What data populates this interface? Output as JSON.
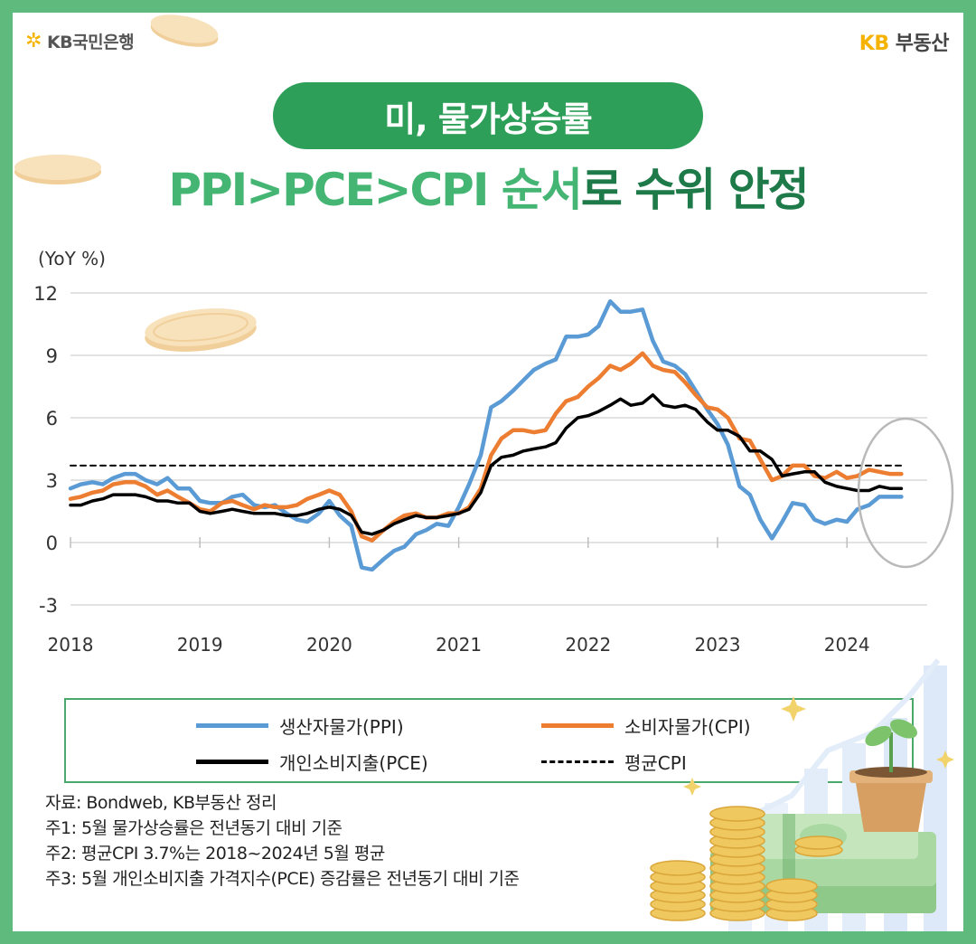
{
  "brand": {
    "left_logo": "KB국민은행",
    "right_logo_kb": "KB",
    "right_logo_text": "부동산"
  },
  "title": {
    "pill": "미, 물가상승률",
    "headline_a": "PPI>PCE>CPI 순서",
    "headline_b": "로 수위 안정"
  },
  "colors": {
    "ppi": "#5b9bd5",
    "cpi": "#ed7d31",
    "pce": "#000000",
    "avg": "#000000",
    "frame": "#5fba7d",
    "accent_dark": "#1f7a4a",
    "accent_light": "#45b573"
  },
  "chart_data": {
    "type": "line",
    "unit_label": "(YoY %)",
    "ylim": [
      -3,
      12
    ],
    "yticks": [
      12,
      9,
      6,
      3,
      0,
      -3
    ],
    "xlim": [
      2018.0,
      2024.42
    ],
    "xticks": [
      "2018",
      "2019",
      "2020",
      "2021",
      "2022",
      "2023",
      "2024"
    ],
    "grid": "horizontal",
    "series": [
      {
        "name": "생산자물가(PPI)",
        "key": "ppi",
        "x": [
          2018.0,
          2018.08,
          2018.17,
          2018.25,
          2018.33,
          2018.42,
          2018.5,
          2018.58,
          2018.67,
          2018.75,
          2018.83,
          2018.92,
          2019.0,
          2019.08,
          2019.17,
          2019.25,
          2019.33,
          2019.42,
          2019.5,
          2019.58,
          2019.67,
          2019.75,
          2019.83,
          2019.92,
          2020.0,
          2020.08,
          2020.17,
          2020.25,
          2020.33,
          2020.42,
          2020.5,
          2020.58,
          2020.67,
          2020.75,
          2020.83,
          2020.92,
          2021.0,
          2021.08,
          2021.17,
          2021.25,
          2021.33,
          2021.42,
          2021.5,
          2021.58,
          2021.67,
          2021.75,
          2021.83,
          2021.92,
          2022.0,
          2022.08,
          2022.17,
          2022.25,
          2022.33,
          2022.42,
          2022.5,
          2022.58,
          2022.67,
          2022.75,
          2022.83,
          2022.92,
          2023.0,
          2023.08,
          2023.17,
          2023.25,
          2023.33,
          2023.42,
          2023.5,
          2023.58,
          2023.67,
          2023.75,
          2023.83,
          2023.92,
          2024.0,
          2024.08,
          2024.17,
          2024.25,
          2024.33,
          2024.42
        ],
        "values": [
          2.6,
          2.8,
          2.9,
          2.8,
          3.1,
          3.3,
          3.3,
          3.0,
          2.8,
          3.1,
          2.6,
          2.6,
          2.0,
          1.9,
          1.9,
          2.2,
          2.3,
          1.8,
          1.7,
          1.8,
          1.4,
          1.1,
          1.0,
          1.4,
          2.0,
          1.3,
          0.8,
          -1.2,
          -1.3,
          -0.8,
          -0.4,
          -0.2,
          0.4,
          0.6,
          0.9,
          0.8,
          1.7,
          2.8,
          4.2,
          6.5,
          6.8,
          7.3,
          7.8,
          8.3,
          8.6,
          8.8,
          9.9,
          9.9,
          10.0,
          10.4,
          11.6,
          11.1,
          11.1,
          11.2,
          9.7,
          8.7,
          8.5,
          8.1,
          7.3,
          6.4,
          5.7,
          4.7,
          2.7,
          2.3,
          1.1,
          0.2,
          1.0,
          1.9,
          1.8,
          1.1,
          0.9,
          1.1,
          1.0,
          1.6,
          1.8,
          2.2,
          2.2,
          2.2
        ]
      },
      {
        "name": "소비자물가(CPI)",
        "key": "cpi",
        "x": [
          2018.0,
          2018.08,
          2018.17,
          2018.25,
          2018.33,
          2018.42,
          2018.5,
          2018.58,
          2018.67,
          2018.75,
          2018.83,
          2018.92,
          2019.0,
          2019.08,
          2019.17,
          2019.25,
          2019.33,
          2019.42,
          2019.5,
          2019.58,
          2019.67,
          2019.75,
          2019.83,
          2019.92,
          2020.0,
          2020.08,
          2020.17,
          2020.25,
          2020.33,
          2020.42,
          2020.5,
          2020.58,
          2020.67,
          2020.75,
          2020.83,
          2020.92,
          2021.0,
          2021.08,
          2021.17,
          2021.25,
          2021.33,
          2021.42,
          2021.5,
          2021.58,
          2021.67,
          2021.75,
          2021.83,
          2021.92,
          2022.0,
          2022.08,
          2022.17,
          2022.25,
          2022.33,
          2022.42,
          2022.5,
          2022.58,
          2022.67,
          2022.75,
          2022.83,
          2022.92,
          2023.0,
          2023.08,
          2023.17,
          2023.25,
          2023.33,
          2023.42,
          2023.5,
          2023.58,
          2023.67,
          2023.75,
          2023.83,
          2023.92,
          2024.0,
          2024.08,
          2024.17,
          2024.25,
          2024.33,
          2024.42
        ],
        "values": [
          2.1,
          2.2,
          2.4,
          2.5,
          2.8,
          2.9,
          2.9,
          2.7,
          2.3,
          2.5,
          2.2,
          1.9,
          1.6,
          1.5,
          1.9,
          2.0,
          1.8,
          1.6,
          1.8,
          1.7,
          1.7,
          1.8,
          2.1,
          2.3,
          2.5,
          2.3,
          1.5,
          0.3,
          0.1,
          0.6,
          1.0,
          1.3,
          1.4,
          1.2,
          1.2,
          1.4,
          1.4,
          1.7,
          2.6,
          4.2,
          5.0,
          5.4,
          5.4,
          5.3,
          5.4,
          6.2,
          6.8,
          7.0,
          7.5,
          7.9,
          8.5,
          8.3,
          8.6,
          9.1,
          8.5,
          8.3,
          8.2,
          7.7,
          7.1,
          6.5,
          6.4,
          6.0,
          5.0,
          4.9,
          4.0,
          3.0,
          3.2,
          3.7,
          3.7,
          3.2,
          3.1,
          3.4,
          3.1,
          3.2,
          3.5,
          3.4,
          3.3,
          3.3
        ]
      },
      {
        "name": "개인소비지출(PCE)",
        "key": "pce",
        "x": [
          2018.0,
          2018.08,
          2018.17,
          2018.25,
          2018.33,
          2018.42,
          2018.5,
          2018.58,
          2018.67,
          2018.75,
          2018.83,
          2018.92,
          2019.0,
          2019.08,
          2019.17,
          2019.25,
          2019.33,
          2019.42,
          2019.5,
          2019.58,
          2019.67,
          2019.75,
          2019.83,
          2019.92,
          2020.0,
          2020.08,
          2020.17,
          2020.25,
          2020.33,
          2020.42,
          2020.5,
          2020.58,
          2020.67,
          2020.75,
          2020.83,
          2020.92,
          2021.0,
          2021.08,
          2021.17,
          2021.25,
          2021.33,
          2021.42,
          2021.5,
          2021.58,
          2021.67,
          2021.75,
          2021.83,
          2021.92,
          2022.0,
          2022.08,
          2022.17,
          2022.25,
          2022.33,
          2022.42,
          2022.5,
          2022.58,
          2022.67,
          2022.75,
          2022.83,
          2022.92,
          2023.0,
          2023.08,
          2023.17,
          2023.25,
          2023.33,
          2023.42,
          2023.5,
          2023.58,
          2023.67,
          2023.75,
          2023.83,
          2023.92,
          2024.0,
          2024.08,
          2024.17,
          2024.25,
          2024.33,
          2024.42
        ],
        "values": [
          1.8,
          1.8,
          2.0,
          2.1,
          2.3,
          2.3,
          2.3,
          2.2,
          2.0,
          2.0,
          1.9,
          1.9,
          1.5,
          1.4,
          1.5,
          1.6,
          1.5,
          1.4,
          1.4,
          1.4,
          1.3,
          1.3,
          1.4,
          1.6,
          1.7,
          1.6,
          1.3,
          0.5,
          0.4,
          0.6,
          0.9,
          1.1,
          1.3,
          1.2,
          1.2,
          1.3,
          1.4,
          1.6,
          2.4,
          3.7,
          4.1,
          4.2,
          4.4,
          4.5,
          4.6,
          4.8,
          5.5,
          6.0,
          6.1,
          6.3,
          6.6,
          6.9,
          6.6,
          6.7,
          7.1,
          6.6,
          6.5,
          6.6,
          6.4,
          5.8,
          5.4,
          5.4,
          5.1,
          4.4,
          4.4,
          4.0,
          3.2,
          3.3,
          3.4,
          3.4,
          2.9,
          2.7,
          2.6,
          2.5,
          2.5,
          2.7,
          2.6,
          2.6
        ]
      },
      {
        "name": "평균CPI",
        "key": "avg",
        "x": [
          2018.0,
          2024.42
        ],
        "values": [
          3.7,
          3.7
        ]
      }
    ]
  },
  "notes": [
    "자료: Bondweb, KB부동산 정리",
    "주1: 5월 물가상승률은 전년동기 대비 기준",
    "주2: 평균CPI 3.7%는 2018~2024년 5월 평균",
    "주3: 5월 개인소비지출 가격지수(PCE) 증감률은 전년동기 대비 기준"
  ]
}
